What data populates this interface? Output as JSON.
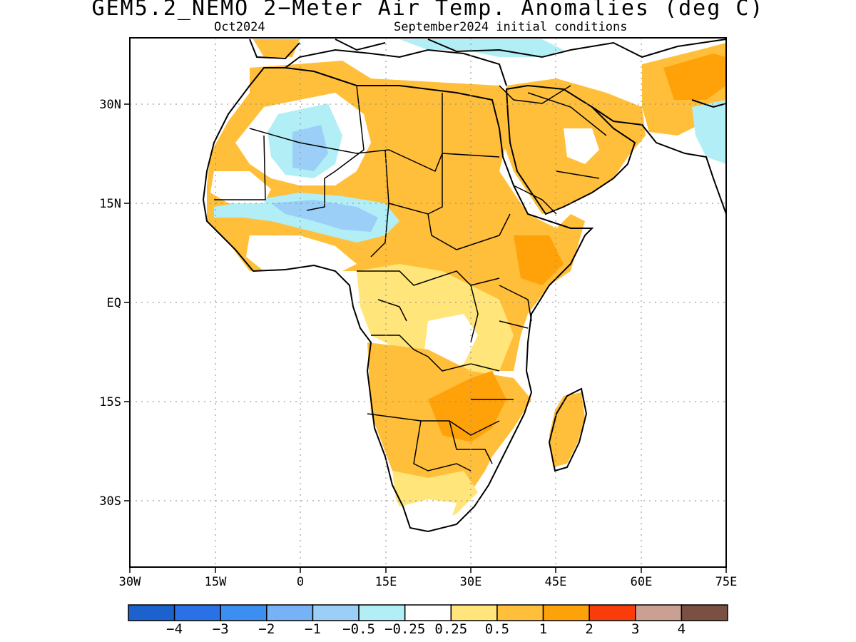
{
  "header": {
    "title": "GEM5.2_NEMO 2−Meter Air Temp. Anomalies (deg C)",
    "valid_month": "Oct2024",
    "initial_conditions": "September2024 initial conditions"
  },
  "map": {
    "region": "Africa",
    "lon_range": [
      -30,
      75
    ],
    "lat_range": [
      -40,
      40
    ],
    "x_ticks": [
      "30W",
      "15W",
      "0",
      "15E",
      "30E",
      "45E",
      "60E",
      "75E"
    ],
    "y_ticks": [
      "30N",
      "15N",
      "EQ",
      "15S",
      "30S"
    ],
    "grid": "dotted"
  },
  "colorbar": {
    "colors": [
      "#1c62cf",
      "#2a71e8",
      "#3c8ef0",
      "#76b2f5",
      "#9ccff7",
      "#b2eef5",
      "#ffffff",
      "#ffe57a",
      "#ffbf3a",
      "#ffa20a",
      "#fa3c0a",
      "#c9a092",
      "#7a5042"
    ],
    "labels": [
      "−4",
      "−3",
      "−2",
      "−1",
      "−0.5",
      "−0.25",
      "0.25",
      "0.5",
      "1",
      "2",
      "3",
      "4"
    ]
  }
}
